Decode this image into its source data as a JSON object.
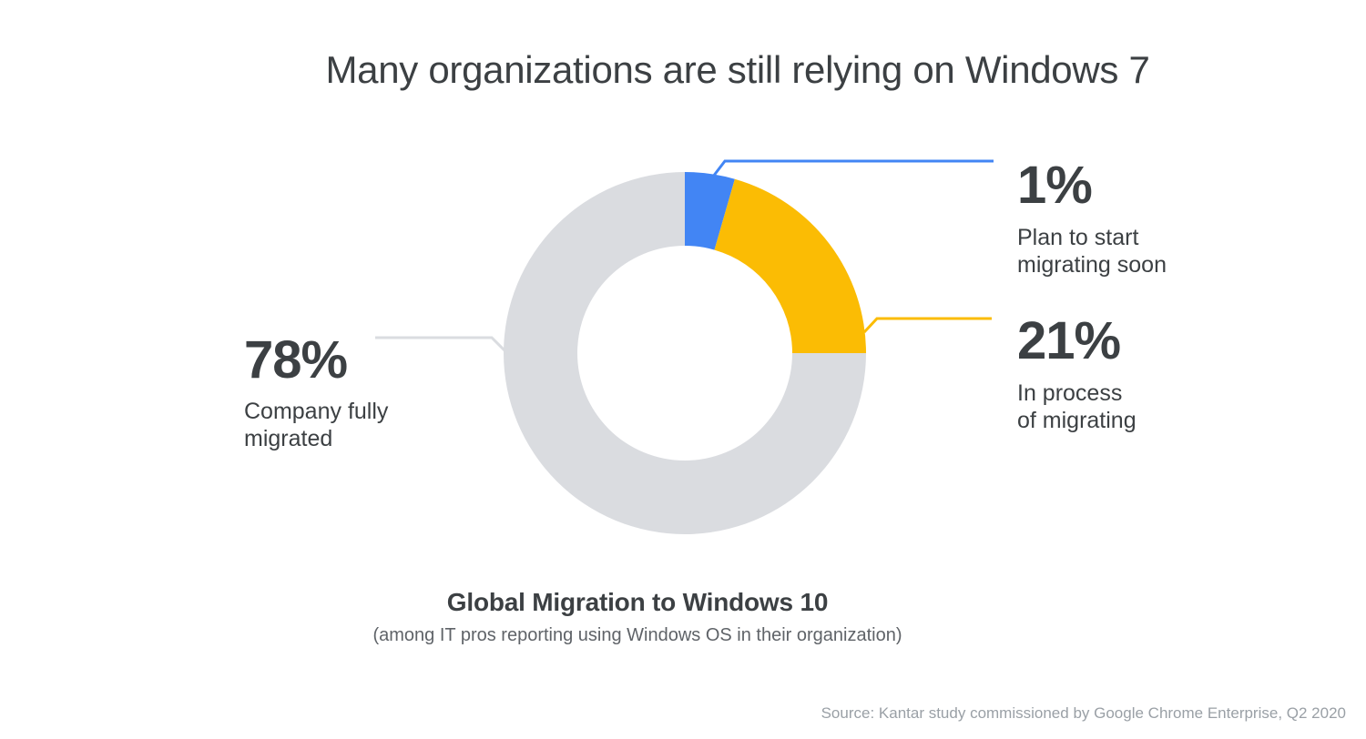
{
  "title": "Many organizations are still relying on Windows 7",
  "chart_data": {
    "type": "pie",
    "style": "donut",
    "title": "Global Migration to Windows 10",
    "subtitle": "(among IT pros reporting using Windows OS in their organization)",
    "unit": "%",
    "total": 100,
    "legend_position": "callouts-outside",
    "segments": [
      {
        "id": "plan-to-start",
        "label": "Plan to start migrating soon",
        "value": 1,
        "color": "#4285F4",
        "display_arc_deg": [
          0,
          16
        ]
      },
      {
        "id": "in-process",
        "label": "In process of migrating",
        "value": 21,
        "color": "#FBBC04",
        "display_arc_deg": [
          16,
          90
        ]
      },
      {
        "id": "fully-migrated",
        "label": "Company fully migrated",
        "value": 78,
        "color": "#DADCE0",
        "display_arc_deg": [
          90,
          360
        ]
      }
    ]
  },
  "callouts": {
    "migrated": {
      "value": "78%",
      "line1": "Company fully",
      "line2": "migrated"
    },
    "plan": {
      "value": "1%",
      "line1": "Plan to start",
      "line2": "migrating soon"
    },
    "in_process": {
      "value": "21%",
      "line1": "In process",
      "line2": "of migrating"
    }
  },
  "source": "Source: Kantar study commissioned by Google Chrome Enterprise, Q2 2020",
  "colors": {
    "blue": "#4285F4",
    "yellow": "#FBBC04",
    "gray": "#DADCE0",
    "text_dark": "#3C4043",
    "text_muted": "#5F6368",
    "text_source": "#9AA0A6",
    "background": "#FFFFFF"
  }
}
